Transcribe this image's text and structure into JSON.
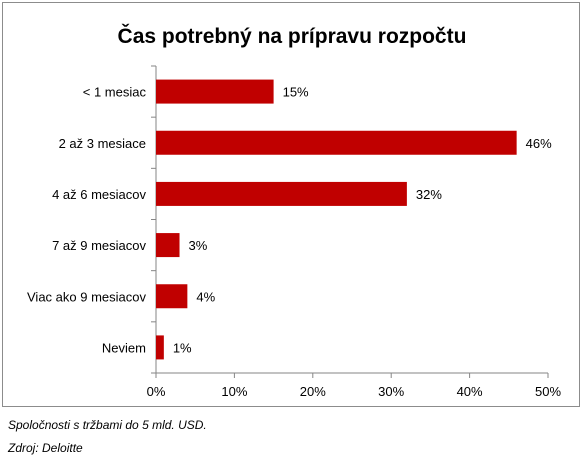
{
  "chart_data": {
    "type": "bar",
    "orientation": "horizontal",
    "title": "Čas potrebný na prípravu rozpočtu",
    "categories": [
      "< 1 mesiac",
      "2 až 3 mesiace",
      "4 až 6 mesiacov",
      "7 až 9 mesiacov",
      "Viac ako 9 mesiacov",
      "Neviem"
    ],
    "values": [
      15,
      46,
      32,
      3,
      4,
      1
    ],
    "data_labels": [
      "15%",
      "46%",
      "32%",
      "3%",
      "4%",
      "1%"
    ],
    "x_ticks": [
      0,
      10,
      20,
      30,
      40,
      50
    ],
    "x_tick_labels": [
      "0%",
      "10%",
      "20%",
      "30%",
      "40%",
      "50%"
    ],
    "xlim": [
      0,
      50
    ],
    "grid": false,
    "legend": "none",
    "bar_color": "#c00000"
  },
  "footnotes": {
    "note_1": "Spoločnosti s tržbami do 5 mld. USD.",
    "note_2": "Zdroj: Deloitte"
  }
}
